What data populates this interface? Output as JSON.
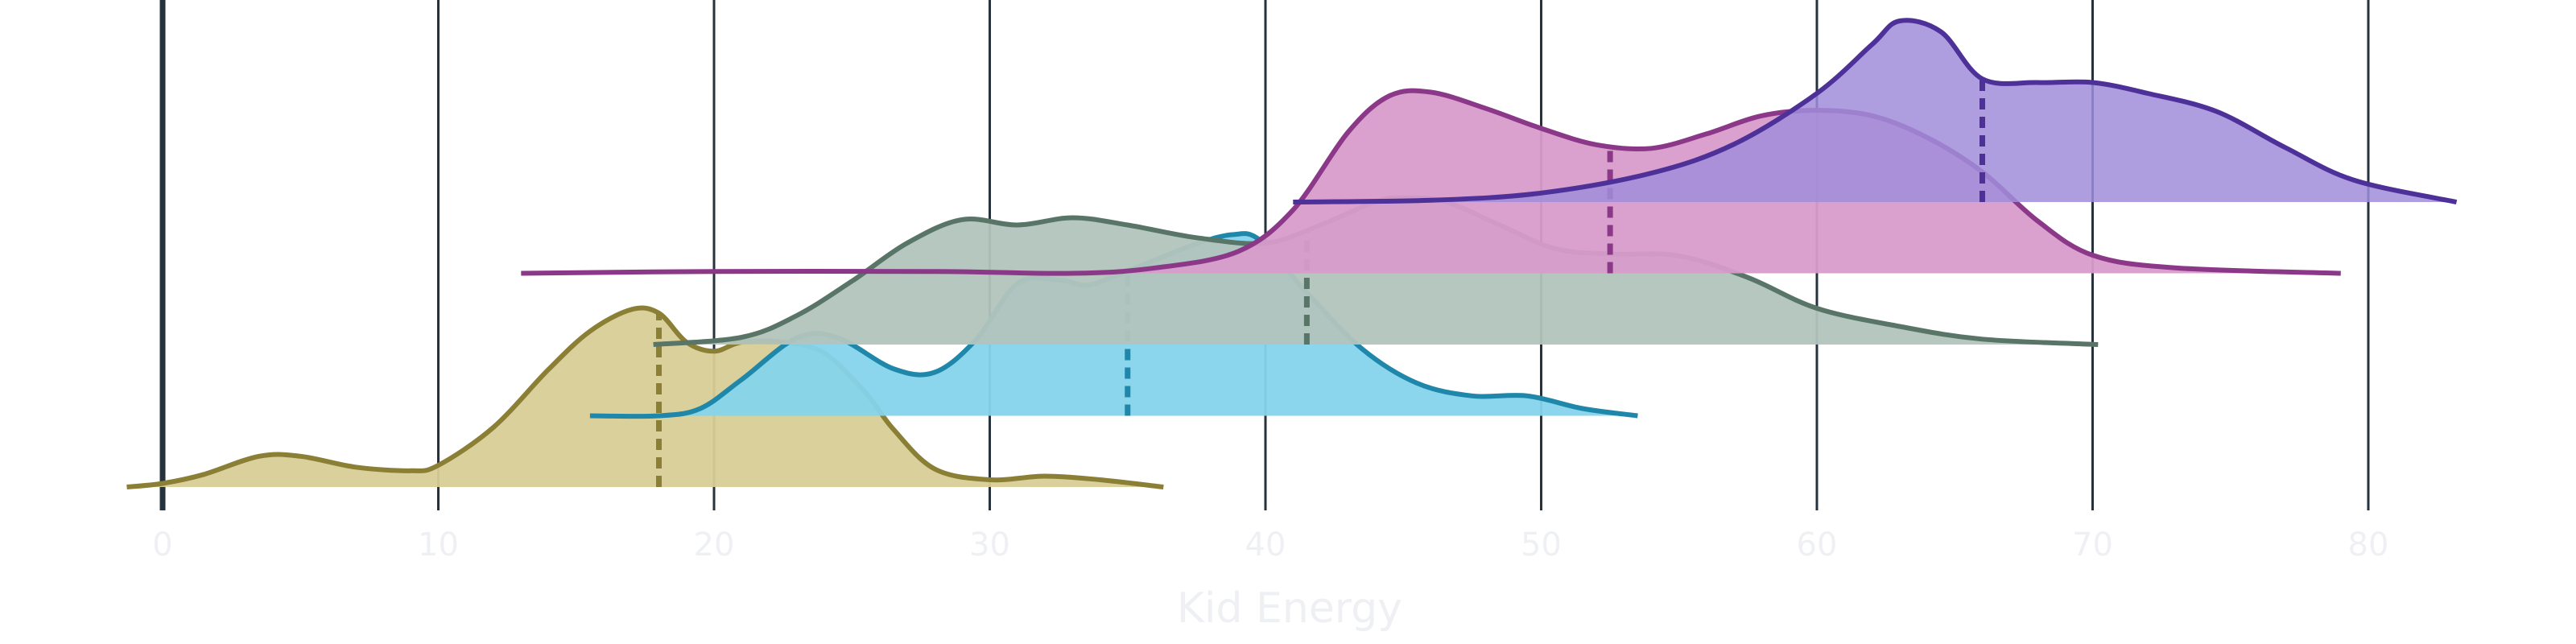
{
  "chart_data": {
    "type": "ridgeline",
    "xlabel": "Kid Energy",
    "ylabel": "",
    "xlim": [
      -1.5,
      85
    ],
    "xticks": [
      0,
      10,
      20,
      30,
      40,
      50,
      60,
      70,
      80
    ],
    "xtick_labels": [
      "0",
      "10",
      "20",
      "30",
      "40",
      "50",
      "60",
      "70",
      "80"
    ],
    "grid": "vertical",
    "legend": "none",
    "series": [
      {
        "color": "#8a7f34",
        "fill": "#d8ce96",
        "fill_opacity": 0.95,
        "x_range": [
          -1.3,
          36.3
        ],
        "median": 18,
        "density": [
          [
            -1.3,
            0
          ],
          [
            0,
            0.02
          ],
          [
            1.5,
            0.07
          ],
          [
            3.5,
            0.17
          ],
          [
            5,
            0.17
          ],
          [
            7,
            0.11
          ],
          [
            9,
            0.09
          ],
          [
            10,
            0.12
          ],
          [
            12,
            0.33
          ],
          [
            14,
            0.65
          ],
          [
            15.5,
            0.86
          ],
          [
            17,
            0.98
          ],
          [
            18,
            0.96
          ],
          [
            19,
            0.8
          ],
          [
            20,
            0.75
          ],
          [
            21,
            0.8
          ],
          [
            22.5,
            0.8
          ],
          [
            24,
            0.74
          ],
          [
            25.5,
            0.52
          ],
          [
            26.5,
            0.32
          ],
          [
            28,
            0.1
          ],
          [
            30,
            0.04
          ],
          [
            32,
            0.06
          ],
          [
            34,
            0.04
          ],
          [
            36.3,
            0
          ]
        ]
      },
      {
        "color": "#1f87aa",
        "fill": "#86d4ec",
        "fill_opacity": 0.95,
        "x_range": [
          15.5,
          53.5
        ],
        "median": 35,
        "density": [
          [
            15.5,
            0
          ],
          [
            18,
            0
          ],
          [
            19.5,
            0.04
          ],
          [
            21,
            0.2
          ],
          [
            23,
            0.43
          ],
          [
            24.5,
            0.43
          ],
          [
            26.5,
            0.26
          ],
          [
            28,
            0.24
          ],
          [
            29.5,
            0.42
          ],
          [
            31,
            0.73
          ],
          [
            32.5,
            0.75
          ],
          [
            33.5,
            0.72
          ],
          [
            34.5,
            0.77
          ],
          [
            36,
            0.86
          ],
          [
            37.5,
            0.95
          ],
          [
            38.8,
            1.0
          ],
          [
            39.8,
            0.97
          ],
          [
            41.5,
            0.68
          ],
          [
            43.5,
            0.37
          ],
          [
            45.5,
            0.18
          ],
          [
            47.5,
            0.11
          ],
          [
            49.5,
            0.11
          ],
          [
            51.5,
            0.04
          ],
          [
            53.5,
            0
          ]
        ]
      },
      {
        "color": "#587568",
        "fill": "#b2c4bd",
        "fill_opacity": 0.95,
        "x_range": [
          17.8,
          70.2
        ],
        "median": 41.5,
        "density": [
          [
            17.8,
            0
          ],
          [
            21,
            0.04
          ],
          [
            23,
            0.16
          ],
          [
            25,
            0.35
          ],
          [
            27,
            0.56
          ],
          [
            29,
            0.69
          ],
          [
            31,
            0.66
          ],
          [
            33,
            0.7
          ],
          [
            35,
            0.66
          ],
          [
            37.5,
            0.59
          ],
          [
            40,
            0.56
          ],
          [
            42,
            0.66
          ],
          [
            44,
            0.79
          ],
          [
            45,
            0.81
          ],
          [
            46.5,
            0.79
          ],
          [
            48.5,
            0.66
          ],
          [
            50.5,
            0.53
          ],
          [
            52.5,
            0.5
          ],
          [
            55,
            0.49
          ],
          [
            57.5,
            0.37
          ],
          [
            60,
            0.2
          ],
          [
            63,
            0.1
          ],
          [
            66,
            0.03
          ],
          [
            70.2,
            0
          ]
        ]
      },
      {
        "color": "#8b3889",
        "fill": "#d89ccb",
        "fill_opacity": 0.95,
        "x_range": [
          13,
          79
        ],
        "median": 52.5,
        "density": [
          [
            13,
            0
          ],
          [
            20,
            0.01
          ],
          [
            28,
            0.01
          ],
          [
            33,
            0
          ],
          [
            36,
            0.03
          ],
          [
            39,
            0.12
          ],
          [
            41,
            0.35
          ],
          [
            43,
            0.78
          ],
          [
            44.5,
            0.98
          ],
          [
            46,
            1.0
          ],
          [
            48,
            0.91
          ],
          [
            50,
            0.8
          ],
          [
            52,
            0.71
          ],
          [
            54,
            0.69
          ],
          [
            56,
            0.77
          ],
          [
            58,
            0.87
          ],
          [
            60,
            0.9
          ],
          [
            62,
            0.87
          ],
          [
            64,
            0.75
          ],
          [
            66,
            0.56
          ],
          [
            68,
            0.29
          ],
          [
            70,
            0.1
          ],
          [
            73,
            0.03
          ],
          [
            79,
            0
          ]
        ]
      },
      {
        "color": "#4e3099",
        "fill": "#a08ddb",
        "fill_opacity": 0.85,
        "x_range": [
          41,
          83.2
        ],
        "median": 66,
        "density": [
          [
            41,
            0
          ],
          [
            46,
            0.01
          ],
          [
            50,
            0.05
          ],
          [
            54,
            0.16
          ],
          [
            57,
            0.32
          ],
          [
            60,
            0.6
          ],
          [
            62,
            0.87
          ],
          [
            63,
            1.0
          ],
          [
            64.5,
            0.94
          ],
          [
            66,
            0.68
          ],
          [
            68,
            0.66
          ],
          [
            70,
            0.66
          ],
          [
            72,
            0.6
          ],
          [
            74.5,
            0.5
          ],
          [
            77,
            0.3
          ],
          [
            79.5,
            0.12
          ],
          [
            83.2,
            0
          ]
        ]
      }
    ]
  }
}
